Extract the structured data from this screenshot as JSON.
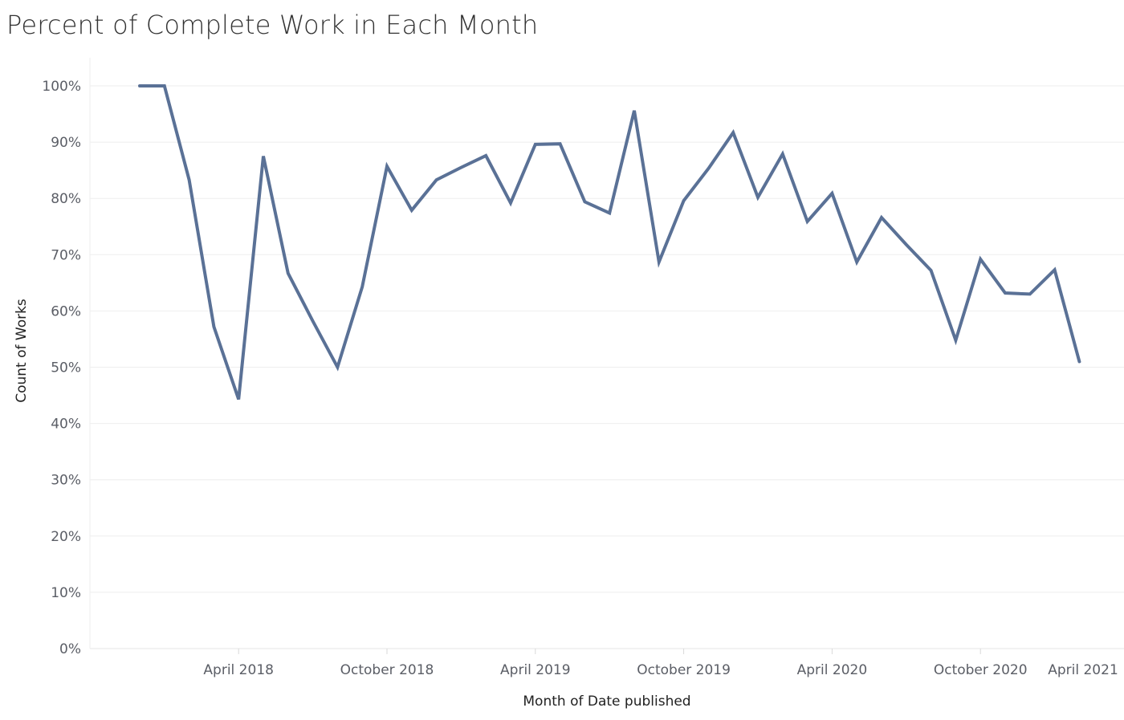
{
  "chart_data": {
    "type": "line",
    "title": "Percent of Complete Work in Each Month",
    "xlabel": "Month of Date published",
    "ylabel": "Count of Works",
    "ylim": [
      0,
      100
    ],
    "y_ticks": [
      "0%",
      "10%",
      "20%",
      "30%",
      "40%",
      "50%",
      "60%",
      "70%",
      "80%",
      "90%",
      "100%"
    ],
    "x_ticks": [
      {
        "label": "April 2018",
        "date": "2018-04"
      },
      {
        "label": "October 2018",
        "date": "2018-10"
      },
      {
        "label": "April 2019",
        "date": "2019-04"
      },
      {
        "label": "October 2019",
        "date": "2019-10"
      },
      {
        "label": "April 2020",
        "date": "2020-04"
      },
      {
        "label": "October 2020",
        "date": "2020-10"
      },
      {
        "label": "April 2021",
        "date": "2021-04"
      }
    ],
    "grid": true,
    "line_color": "#5a7196",
    "series": [
      {
        "x": [
          "2017-12",
          "2018-01",
          "2018-02",
          "2018-03",
          "2018-04",
          "2018-05",
          "2018-06",
          "2018-07",
          "2018-08",
          "2018-09",
          "2018-10",
          "2018-11",
          "2018-12",
          "2019-01",
          "2019-02",
          "2019-03",
          "2019-04",
          "2019-05",
          "2019-06",
          "2019-07",
          "2019-08",
          "2019-09",
          "2019-10",
          "2019-11",
          "2019-12",
          "2020-01",
          "2020-02",
          "2020-03",
          "2020-04",
          "2020-05",
          "2020-06",
          "2020-07",
          "2020-08",
          "2020-09",
          "2020-10",
          "2020-11",
          "2020-12",
          "2021-01",
          "2021-02"
        ],
        "values": [
          100,
          100,
          83.3,
          57.2,
          44.3,
          87.5,
          66.7,
          58.2,
          50,
          64.3,
          85.7,
          77.9,
          83.3,
          85.5,
          87.6,
          79.2,
          89.6,
          89.7,
          79.4,
          77.4,
          95.6,
          68.7,
          79.6,
          85.3,
          91.7,
          80.2,
          87.9,
          75.9,
          80.9,
          68.7,
          76.6,
          71.8,
          67.2,
          54.8,
          69.2,
          63.2,
          63,
          67.3,
          51
        ]
      }
    ]
  }
}
